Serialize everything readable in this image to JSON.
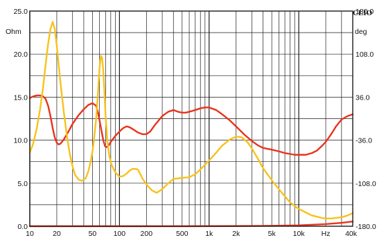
{
  "chart_data": {
    "type": "line",
    "brand": "CLIO",
    "x_scale": "log",
    "xlim": [
      10,
      40000
    ],
    "x_ticks": [
      {
        "value": 10,
        "label": "10"
      },
      {
        "value": 20,
        "label": "20"
      },
      {
        "value": 50,
        "label": "50"
      },
      {
        "value": 100,
        "label": "100"
      },
      {
        "value": 200,
        "label": "200"
      },
      {
        "value": 500,
        "label": "500"
      },
      {
        "value": 1000,
        "label": "1k"
      },
      {
        "value": 2000,
        "label": "2k"
      },
      {
        "value": 5000,
        "label": "5k"
      },
      {
        "value": 10000,
        "label": "10k"
      },
      {
        "value": 40000,
        "label": "40k"
      }
    ],
    "x_unit": "Hz",
    "x_unit_position_value": 20000,
    "y_left": {
      "unit": "Ohm",
      "ylim": [
        0,
        25
      ],
      "ticks": [
        {
          "value": 0,
          "label": "0.0"
        },
        {
          "value": 5,
          "label": "5.0"
        },
        {
          "value": 10,
          "label": "10.0"
        },
        {
          "value": 15,
          "label": "15.0"
        },
        {
          "value": 20,
          "label": "20.0"
        },
        {
          "value": 25,
          "label": "25.0"
        }
      ]
    },
    "y_right": {
      "unit": "deg",
      "ylim": [
        -180,
        180
      ],
      "ticks": [
        {
          "value": -180,
          "label": "-180.0"
        },
        {
          "value": -108,
          "label": "-108.0"
        },
        {
          "value": -36,
          "label": "-36.0"
        },
        {
          "value": 36,
          "label": "36.0"
        },
        {
          "value": 108,
          "label": "108.0"
        },
        {
          "value": 180,
          "label": "180.0"
        }
      ]
    },
    "grid": true,
    "series": [
      {
        "axis": "left",
        "color": "#e8331c",
        "points": [
          [
            10,
            14.9
          ],
          [
            11,
            15.1
          ],
          [
            12,
            15.2
          ],
          [
            13,
            15.2
          ],
          [
            14,
            15.1
          ],
          [
            15,
            14.8
          ],
          [
            16,
            14.0
          ],
          [
            17,
            12.8
          ],
          [
            18,
            11.4
          ],
          [
            19,
            10.3
          ],
          [
            20,
            9.7
          ],
          [
            21,
            9.5
          ],
          [
            22,
            9.6
          ],
          [
            24,
            10.1
          ],
          [
            27,
            11.0
          ],
          [
            30,
            11.9
          ],
          [
            35,
            12.9
          ],
          [
            40,
            13.6
          ],
          [
            45,
            14.1
          ],
          [
            50,
            14.3
          ],
          [
            55,
            14.0
          ],
          [
            58,
            13.1
          ],
          [
            62,
            11.5
          ],
          [
            66,
            10.0
          ],
          [
            69,
            9.3
          ],
          [
            72,
            9.2
          ],
          [
            76,
            9.4
          ],
          [
            80,
            9.8
          ],
          [
            90,
            10.5
          ],
          [
            100,
            11.0
          ],
          [
            110,
            11.4
          ],
          [
            120,
            11.6
          ],
          [
            130,
            11.5
          ],
          [
            145,
            11.2
          ],
          [
            160,
            10.9
          ],
          [
            180,
            10.7
          ],
          [
            200,
            10.7
          ],
          [
            220,
            11.0
          ],
          [
            250,
            11.8
          ],
          [
            300,
            12.8
          ],
          [
            350,
            13.3
          ],
          [
            400,
            13.5
          ],
          [
            450,
            13.3
          ],
          [
            500,
            13.2
          ],
          [
            550,
            13.2
          ],
          [
            600,
            13.3
          ],
          [
            700,
            13.5
          ],
          [
            800,
            13.7
          ],
          [
            900,
            13.8
          ],
          [
            1000,
            13.8
          ],
          [
            1200,
            13.5
          ],
          [
            1400,
            13.0
          ],
          [
            1700,
            12.3
          ],
          [
            2000,
            11.6
          ],
          [
            2500,
            10.6
          ],
          [
            3000,
            9.9
          ],
          [
            3500,
            9.4
          ],
          [
            4000,
            9.1
          ],
          [
            5000,
            8.9
          ],
          [
            6000,
            8.7
          ],
          [
            7000,
            8.5
          ],
          [
            8000,
            8.4
          ],
          [
            9000,
            8.3
          ],
          [
            10000,
            8.3
          ],
          [
            11000,
            8.3
          ],
          [
            12000,
            8.3
          ],
          [
            14000,
            8.5
          ],
          [
            16000,
            8.8
          ],
          [
            18000,
            9.3
          ],
          [
            20000,
            9.8
          ],
          [
            23000,
            10.7
          ],
          [
            26000,
            11.6
          ],
          [
            30000,
            12.4
          ],
          [
            35000,
            12.8
          ],
          [
            40000,
            13.0
          ]
        ]
      },
      {
        "axis": "right",
        "color": "#f7c21a",
        "points": [
          [
            10,
            -57
          ],
          [
            11,
            -40
          ],
          [
            12,
            -15
          ],
          [
            13,
            15
          ],
          [
            14,
            50
          ],
          [
            15,
            90
          ],
          [
            16,
            125
          ],
          [
            17,
            150
          ],
          [
            18,
            162
          ],
          [
            19,
            150
          ],
          [
            20,
            122
          ],
          [
            21,
            90
          ],
          [
            22,
            60
          ],
          [
            24,
            10
          ],
          [
            26,
            -30
          ],
          [
            28,
            -60
          ],
          [
            30,
            -80
          ],
          [
            32,
            -94
          ],
          [
            35,
            -102
          ],
          [
            38,
            -104
          ],
          [
            42,
            -100
          ],
          [
            45,
            -88
          ],
          [
            48,
            -70
          ],
          [
            50,
            -55
          ],
          [
            52,
            -35
          ],
          [
            55,
            0
          ],
          [
            58,
            50
          ],
          [
            60,
            85
          ],
          [
            62,
            105
          ],
          [
            64,
            102
          ],
          [
            66,
            80
          ],
          [
            68,
            45
          ],
          [
            70,
            5
          ],
          [
            73,
            -35
          ],
          [
            77,
            -62
          ],
          [
            82,
            -78
          ],
          [
            90,
            -90
          ],
          [
            100,
            -97
          ],
          [
            110,
            -96
          ],
          [
            120,
            -92
          ],
          [
            130,
            -87
          ],
          [
            140,
            -84
          ],
          [
            150,
            -84
          ],
          [
            160,
            -85
          ],
          [
            170,
            -92
          ],
          [
            180,
            -100
          ],
          [
            200,
            -110
          ],
          [
            230,
            -120
          ],
          [
            260,
            -124
          ],
          [
            300,
            -118
          ],
          [
            350,
            -108
          ],
          [
            400,
            -101
          ],
          [
            500,
            -99
          ],
          [
            600,
            -98
          ],
          [
            700,
            -93
          ],
          [
            800,
            -85
          ],
          [
            1000,
            -70
          ],
          [
            1200,
            -57
          ],
          [
            1400,
            -45
          ],
          [
            1700,
            -35
          ],
          [
            2000,
            -30
          ],
          [
            2300,
            -31
          ],
          [
            2700,
            -40
          ],
          [
            3000,
            -50
          ],
          [
            3500,
            -67
          ],
          [
            4000,
            -83
          ],
          [
            5000,
            -103
          ],
          [
            6000,
            -118
          ],
          [
            7000,
            -130
          ],
          [
            8000,
            -140
          ],
          [
            9000,
            -146
          ],
          [
            10000,
            -151
          ],
          [
            12000,
            -157
          ],
          [
            14000,
            -162
          ],
          [
            16000,
            -164
          ],
          [
            18000,
            -166
          ],
          [
            20000,
            -167
          ],
          [
            23000,
            -167
          ],
          [
            26000,
            -166
          ],
          [
            30000,
            -165
          ],
          [
            35000,
            -162
          ],
          [
            40000,
            -158
          ]
        ]
      },
      {
        "axis": "left",
        "color": "#e8331c",
        "points": [
          [
            10,
            0.0
          ],
          [
            500,
            0.0
          ],
          [
            2000,
            0.02
          ],
          [
            5000,
            0.05
          ],
          [
            10000,
            0.1
          ],
          [
            20000,
            0.25
          ],
          [
            30000,
            0.4
          ],
          [
            40000,
            0.55
          ]
        ]
      }
    ]
  }
}
